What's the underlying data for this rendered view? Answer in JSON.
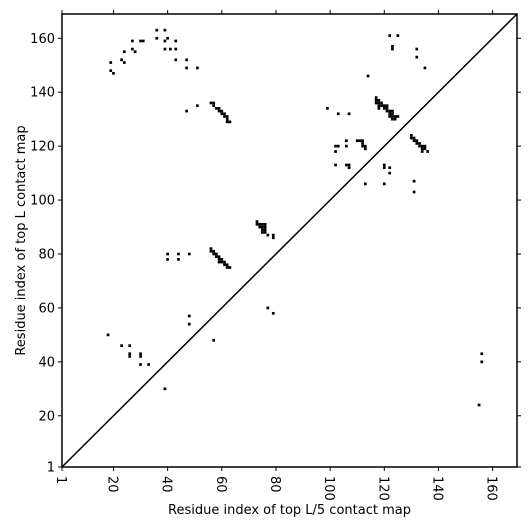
{
  "chart_data": {
    "type": "scatter",
    "title": "",
    "xlabel": "Residue index of top L/5 contact map",
    "ylabel": "Residue index of top L contact map",
    "xlim": [
      1,
      169
    ],
    "ylim": [
      1,
      169
    ],
    "xticks": [
      1,
      20,
      40,
      60,
      80,
      100,
      120,
      140,
      160
    ],
    "xtick_labels": [
      "1",
      "20",
      "40",
      "60",
      "80",
      "100",
      "120",
      "140",
      "160"
    ],
    "yticks": [
      1,
      20,
      40,
      60,
      80,
      100,
      120,
      140,
      160
    ],
    "ytick_labels": [
      "1",
      "20",
      "40",
      "60",
      "80",
      "100",
      "120",
      "140",
      "160"
    ],
    "diagonal": true,
    "marker_color": "#000000",
    "points": [
      [
        19,
        148
      ],
      [
        20,
        147
      ],
      [
        19,
        151
      ],
      [
        23,
        152
      ],
      [
        24,
        151
      ],
      [
        24,
        155
      ],
      [
        27,
        159
      ],
      [
        27,
        156
      ],
      [
        28,
        155
      ],
      [
        30,
        159
      ],
      [
        31,
        159
      ],
      [
        36,
        163
      ],
      [
        39,
        163
      ],
      [
        36,
        160
      ],
      [
        40,
        160
      ],
      [
        39,
        159
      ],
      [
        39,
        156
      ],
      [
        41,
        156
      ],
      [
        43,
        159
      ],
      [
        43,
        156
      ],
      [
        43,
        152
      ],
      [
        47,
        152
      ],
      [
        47,
        149
      ],
      [
        51,
        149
      ],
      [
        47,
        133
      ],
      [
        51,
        135
      ],
      [
        56,
        136
      ],
      [
        57,
        136
      ],
      [
        57,
        135
      ],
      [
        58,
        134
      ],
      [
        59,
        134
      ],
      [
        59,
        133
      ],
      [
        60,
        133
      ],
      [
        60,
        132
      ],
      [
        61,
        132
      ],
      [
        61,
        131
      ],
      [
        62,
        131
      ],
      [
        62,
        130
      ],
      [
        62,
        129
      ],
      [
        63,
        129
      ],
      [
        56,
        82
      ],
      [
        56,
        81
      ],
      [
        57,
        81
      ],
      [
        57,
        80
      ],
      [
        58,
        80
      ],
      [
        58,
        79
      ],
      [
        59,
        79
      ],
      [
        59,
        78
      ],
      [
        60,
        78
      ],
      [
        59,
        77
      ],
      [
        60,
        77
      ],
      [
        61,
        77
      ],
      [
        61,
        76
      ],
      [
        62,
        76
      ],
      [
        62,
        75
      ],
      [
        63,
        75
      ],
      [
        40,
        80
      ],
      [
        40,
        78
      ],
      [
        44,
        80
      ],
      [
        44,
        78
      ],
      [
        48,
        80
      ],
      [
        73,
        92
      ],
      [
        73,
        91
      ],
      [
        74,
        91
      ],
      [
        75,
        91
      ],
      [
        76,
        91
      ],
      [
        74,
        90
      ],
      [
        75,
        90
      ],
      [
        76,
        90
      ],
      [
        75,
        89
      ],
      [
        76,
        89
      ],
      [
        75,
        88
      ],
      [
        76,
        88
      ],
      [
        77,
        87
      ],
      [
        79,
        87
      ],
      [
        79,
        86
      ],
      [
        77,
        60
      ],
      [
        79,
        58
      ],
      [
        48,
        57
      ],
      [
        48,
        54
      ],
      [
        57,
        48
      ],
      [
        18,
        50
      ],
      [
        23,
        46
      ],
      [
        26,
        46
      ],
      [
        26,
        43
      ],
      [
        26,
        42
      ],
      [
        30,
        43
      ],
      [
        30,
        42
      ],
      [
        30,
        39
      ],
      [
        33,
        39
      ],
      [
        39,
        30
      ],
      [
        99,
        134
      ],
      [
        103,
        132
      ],
      [
        107,
        132
      ],
      [
        102,
        120
      ],
      [
        103,
        120
      ],
      [
        102,
        118
      ],
      [
        106,
        122
      ],
      [
        106,
        120
      ],
      [
        102,
        113
      ],
      [
        106,
        113
      ],
      [
        107,
        113
      ],
      [
        107,
        112
      ],
      [
        110,
        122
      ],
      [
        111,
        122
      ],
      [
        112,
        122
      ],
      [
        112,
        121
      ],
      [
        112,
        120
      ],
      [
        113,
        120
      ],
      [
        113,
        119
      ],
      [
        114,
        146
      ],
      [
        117,
        138
      ],
      [
        117,
        137
      ],
      [
        118,
        137
      ],
      [
        117,
        136
      ],
      [
        118,
        136
      ],
      [
        119,
        136
      ],
      [
        118,
        135
      ],
      [
        119,
        135
      ],
      [
        120,
        135
      ],
      [
        121,
        135
      ],
      [
        118,
        134
      ],
      [
        120,
        134
      ],
      [
        121,
        134
      ],
      [
        121,
        133
      ],
      [
        122,
        133
      ],
      [
        123,
        133
      ],
      [
        122,
        132
      ],
      [
        123,
        132
      ],
      [
        122,
        131
      ],
      [
        123,
        131
      ],
      [
        124,
        131
      ],
      [
        125,
        131
      ],
      [
        123,
        130
      ],
      [
        124,
        130
      ],
      [
        120,
        113
      ],
      [
        120,
        112
      ],
      [
        122,
        112
      ],
      [
        122,
        110
      ],
      [
        113,
        106
      ],
      [
        120,
        106
      ],
      [
        122,
        161
      ],
      [
        125,
        161
      ],
      [
        123,
        157
      ],
      [
        123,
        156
      ],
      [
        132,
        156
      ],
      [
        132,
        153
      ],
      [
        135,
        149
      ],
      [
        130,
        124
      ],
      [
        130,
        123
      ],
      [
        131,
        123
      ],
      [
        131,
        122
      ],
      [
        132,
        122
      ],
      [
        132,
        121
      ],
      [
        133,
        121
      ],
      [
        133,
        120
      ],
      [
        134,
        120
      ],
      [
        135,
        120
      ],
      [
        134,
        119
      ],
      [
        135,
        119
      ],
      [
        134,
        118
      ],
      [
        136,
        118
      ],
      [
        131,
        107
      ],
      [
        131,
        103
      ],
      [
        156,
        43
      ],
      [
        156,
        40
      ],
      [
        155,
        24
      ]
    ]
  }
}
